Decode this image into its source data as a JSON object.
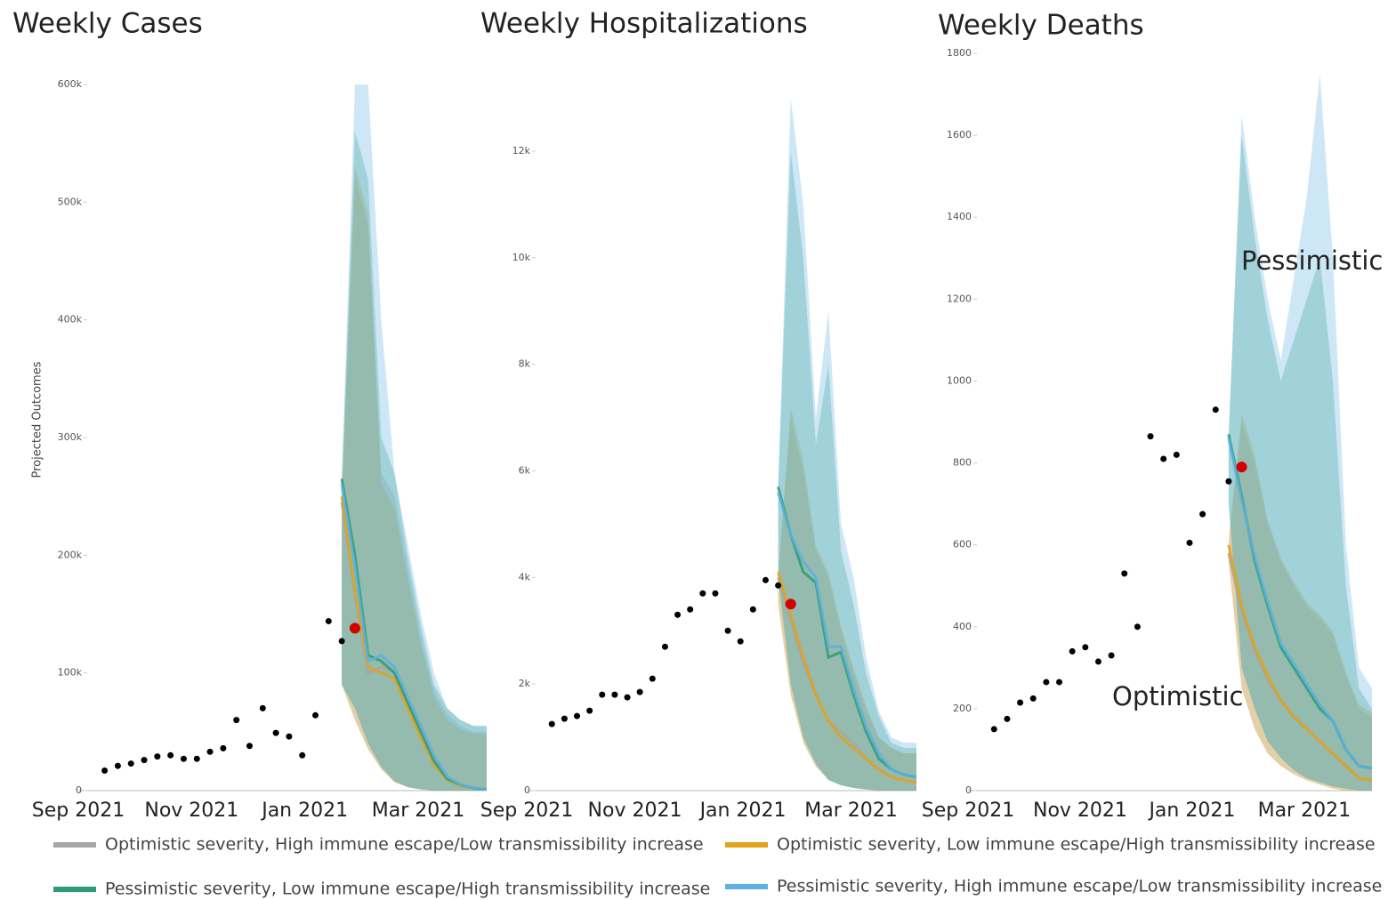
{
  "chart_data": [
    {
      "type": "line",
      "title": "Weekly Cases",
      "ylabel": "Projected Outcomes",
      "xlim": [
        0,
        31
      ],
      "xticks": [
        {
          "value": 0,
          "label": "Sep 2021"
        },
        {
          "value": 8.6,
          "label": "Nov 2021"
        },
        {
          "value": 17.2,
          "label": "Jan 2021"
        },
        {
          "value": 25.8,
          "label": "Mar 2021"
        }
      ],
      "ylim": [
        0,
        600000
      ],
      "yticks": [
        0,
        {
          "value": 100000,
          "label": "100k"
        },
        {
          "value": 200000,
          "label": "200k"
        },
        {
          "value": 300000,
          "label": "300k"
        },
        {
          "value": 400000,
          "label": "400k"
        },
        {
          "value": 500000,
          "label": "500k"
        },
        {
          "value": 600000,
          "label": "600k"
        }
      ],
      "obs_x": [
        2,
        3,
        4,
        5,
        6,
        7,
        8,
        9,
        10,
        11,
        12,
        13,
        14,
        15,
        16,
        17,
        18,
        19,
        20
      ],
      "obs_values": [
        17000,
        21000,
        23000,
        26000,
        29000,
        30000,
        27000,
        27000,
        33000,
        36000,
        60000,
        38000,
        70000,
        49000,
        46000,
        30000,
        64000,
        144000,
        127000
      ],
      "latest_x": 21,
      "latest_value": 138000,
      "proj_x": [
        20,
        21,
        22,
        23,
        24,
        25,
        26,
        27,
        28,
        29,
        30,
        31
      ],
      "series": [
        {
          "values": [
            245000,
            165000,
            100000,
            105000,
            100000,
            75000,
            50000,
            25000,
            10000,
            4000,
            2000,
            1000
          ],
          "upper": [
            245000,
            520000,
            480000,
            270000,
            250000,
            190000,
            130000,
            85000,
            65000,
            55000,
            50000,
            50000
          ],
          "lower": [
            90000,
            60000,
            35000,
            18000,
            7000,
            3000,
            1000,
            0,
            0,
            0,
            0,
            0
          ]
        },
        {
          "values": [
            250000,
            170000,
            105000,
            100000,
            95000,
            70000,
            45000,
            22000,
            9000,
            4000,
            2000,
            1000
          ],
          "upper": [
            250000,
            530000,
            490000,
            260000,
            240000,
            180000,
            125000,
            80000,
            60000,
            52000,
            48000,
            48000
          ],
          "lower": [
            90000,
            60000,
            35000,
            18000,
            7000,
            3000,
            1000,
            0,
            0,
            0,
            0,
            0
          ]
        },
        {
          "values": [
            265000,
            200000,
            115000,
            110000,
            100000,
            75000,
            50000,
            25000,
            10000,
            5000,
            2000,
            1000
          ],
          "upper": [
            265000,
            560000,
            520000,
            300000,
            270000,
            200000,
            140000,
            90000,
            70000,
            60000,
            55000,
            55000
          ],
          "lower": [
            90000,
            70000,
            40000,
            20000,
            8000,
            3000,
            1000,
            0,
            0,
            0,
            0,
            0
          ]
        },
        {
          "values": [
            260000,
            190000,
            110000,
            115000,
            105000,
            80000,
            55000,
            30000,
            12000,
            5000,
            2000,
            1000
          ],
          "upper": [
            265000,
            600000,
            600000,
            400000,
            270000,
            210000,
            150000,
            100000,
            70000,
            60000,
            55000,
            55000
          ],
          "lower": [
            90000,
            70000,
            40000,
            20000,
            8000,
            3000,
            1000,
            0,
            0,
            0,
            0,
            0
          ]
        }
      ]
    },
    {
      "type": "line",
      "title": "Weekly Hospitalizations",
      "xlim": [
        0,
        31
      ],
      "xticks": [
        {
          "value": 0,
          "label": "Sep 2021"
        },
        {
          "value": 8.6,
          "label": "Nov 2021"
        },
        {
          "value": 17.2,
          "label": "Jan 2021"
        },
        {
          "value": 25.8,
          "label": "Mar 2021"
        }
      ],
      "ylim": [
        0,
        13250
      ],
      "yticks": [
        0,
        {
          "value": 2000,
          "label": "2k"
        },
        {
          "value": 4000,
          "label": "4k"
        },
        {
          "value": 6000,
          "label": "6k"
        },
        {
          "value": 8000,
          "label": "8k"
        },
        {
          "value": 10000,
          "label": "10k"
        },
        {
          "value": 12000,
          "label": "12k"
        }
      ],
      "obs_x": [
        2,
        3,
        4,
        5,
        6,
        7,
        8,
        9,
        10,
        11,
        12,
        13,
        14,
        15,
        16,
        17,
        18,
        19,
        20
      ],
      "obs_values": [
        1250,
        1350,
        1400,
        1500,
        1800,
        1800,
        1750,
        1850,
        2100,
        2700,
        3300,
        3400,
        3700,
        3700,
        3000,
        2800,
        3400,
        3950,
        3850
      ],
      "latest_x": 21,
      "latest_value": 3500,
      "proj_x": [
        20,
        21,
        22,
        23,
        24,
        25,
        26,
        27,
        28,
        29,
        30,
        31
      ],
      "series": [
        {
          "values": [
            4000,
            3200,
            2400,
            1800,
            1300,
            1100,
            900,
            600,
            400,
            250,
            200,
            150
          ],
          "upper": [
            4000,
            7000,
            6000,
            4500,
            4000,
            3000,
            2200,
            1500,
            1000,
            800,
            700,
            700
          ],
          "lower": [
            3500,
            1800,
            900,
            450,
            200,
            100,
            50,
            20,
            0,
            0,
            0,
            0
          ]
        },
        {
          "values": [
            4100,
            3300,
            2500,
            1800,
            1300,
            1000,
            800,
            600,
            400,
            250,
            200,
            150
          ],
          "upper": [
            4100,
            7200,
            6200,
            4600,
            4100,
            3100,
            2300,
            1600,
            1000,
            800,
            700,
            700
          ],
          "lower": [
            3500,
            1800,
            900,
            450,
            200,
            100,
            50,
            20,
            0,
            0,
            0,
            0
          ]
        },
        {
          "values": [
            5700,
            4800,
            4100,
            3900,
            2500,
            2600,
            1800,
            1100,
            600,
            400,
            300,
            250
          ],
          "upper": [
            5700,
            12000,
            10000,
            6500,
            8000,
            4500,
            3500,
            2200,
            1400,
            900,
            800,
            800
          ],
          "lower": [
            4000,
            2000,
            1000,
            500,
            200,
            100,
            50,
            20,
            0,
            0,
            0,
            0
          ]
        },
        {
          "values": [
            5600,
            4800,
            4300,
            4000,
            2700,
            2700,
            1900,
            1200,
            700,
            400,
            300,
            250
          ],
          "upper": [
            5700,
            13000,
            11000,
            7000,
            9000,
            5000,
            4000,
            2500,
            1500,
            1000,
            900,
            900
          ],
          "lower": [
            4000,
            2000,
            1000,
            500,
            200,
            100,
            50,
            20,
            0,
            0,
            0,
            0
          ]
        }
      ]
    },
    {
      "type": "line",
      "title": "Weekly Deaths",
      "annotations": [
        "Pessimistic",
        "Optimistic"
      ],
      "xlim": [
        0,
        31
      ],
      "xticks": [
        {
          "value": 0,
          "label": "Sep 2021"
        },
        {
          "value": 8.6,
          "label": "Nov 2021"
        },
        {
          "value": 17.2,
          "label": "Jan 2021"
        },
        {
          "value": 25.8,
          "label": "Mar 2021"
        }
      ],
      "ylim": [
        0,
        1800
      ],
      "yticks": [
        0,
        200,
        400,
        600,
        800,
        1000,
        1200,
        1400,
        1600,
        1800
      ],
      "obs_x": [
        2,
        3,
        4,
        5,
        6,
        7,
        8,
        9,
        10,
        11,
        12,
        13,
        14,
        15,
        16,
        17,
        18,
        19,
        20
      ],
      "obs_values": [
        150,
        175,
        215,
        225,
        265,
        265,
        340,
        350,
        315,
        330,
        530,
        400,
        865,
        810,
        820,
        605,
        675,
        930,
        755
      ],
      "latest_x": 21,
      "latest_value": 790,
      "proj_x": [
        20,
        21,
        22,
        23,
        24,
        25,
        26,
        27,
        28,
        29,
        30,
        31
      ],
      "series": [
        {
          "values": [
            580,
            440,
            340,
            270,
            220,
            180,
            150,
            120,
            90,
            60,
            30,
            25
          ],
          "upper": [
            600,
            900,
            800,
            650,
            560,
            500,
            450,
            420,
            380,
            280,
            200,
            180
          ],
          "lower": [
            560,
            250,
            150,
            90,
            60,
            40,
            25,
            15,
            5,
            0,
            0,
            0
          ]
        },
        {
          "values": [
            600,
            450,
            350,
            280,
            220,
            180,
            150,
            120,
            90,
            60,
            30,
            25
          ],
          "upper": [
            620,
            920,
            820,
            660,
            570,
            510,
            460,
            430,
            390,
            290,
            210,
            190
          ],
          "lower": [
            560,
            250,
            150,
            90,
            60,
            40,
            25,
            15,
            5,
            0,
            0,
            0
          ]
        },
        {
          "values": [
            870,
            720,
            560,
            450,
            350,
            300,
            250,
            200,
            170,
            100,
            60,
            55
          ],
          "upper": [
            870,
            1600,
            1350,
            1150,
            1000,
            1100,
            1200,
            1300,
            1000,
            500,
            250,
            200
          ],
          "lower": [
            700,
            300,
            200,
            120,
            80,
            50,
            30,
            20,
            10,
            5,
            0,
            0
          ]
        },
        {
          "values": [
            860,
            710,
            570,
            460,
            360,
            310,
            260,
            210,
            170,
            100,
            60,
            55
          ],
          "upper": [
            870,
            1650,
            1400,
            1200,
            1050,
            1250,
            1450,
            1750,
            1300,
            600,
            300,
            250
          ],
          "lower": [
            700,
            300,
            200,
            120,
            80,
            50,
            30,
            20,
            10,
            5,
            0,
            0
          ]
        }
      ]
    }
  ],
  "legend": [
    {
      "name": "Optimistic severity, High immune escape/Low transmissibility increase",
      "color": "#a6a6a6"
    },
    {
      "name": "Optimistic severity, Low immune escape/High transmissibility increase",
      "color": "#e3a21a"
    },
    {
      "name": "Pessimistic severity, Low immune escape/High transmissibility increase",
      "color": "#2e9c72"
    },
    {
      "name": "Pessimistic severity, High immune escape/Low transmissibility increase",
      "color": "#5cb0e3"
    }
  ]
}
